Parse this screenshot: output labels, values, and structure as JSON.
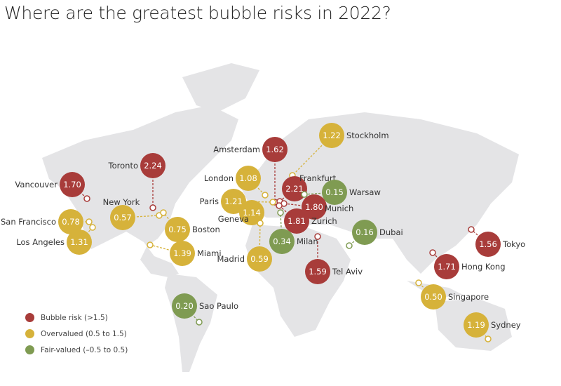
{
  "title": "Where are the greatest bubble risks in 2022?",
  "colors": {
    "bubble_risk": "#a83c3a",
    "overvalued": "#d6b23a",
    "fair_valued": "#7f9b52",
    "land": "#e4e4e6"
  },
  "legend": [
    {
      "category": "bubble_risk",
      "label": "Bubble risk (>1.5)"
    },
    {
      "category": "overvalued",
      "label": "Overvalued (0.5 to 1.5)"
    },
    {
      "category": "fair_valued",
      "label": "Fair-valued (–0.5 to 0.5)"
    }
  ],
  "cities": [
    {
      "name": "Vancouver",
      "value": "1.70",
      "category": "bubble_risk"
    },
    {
      "name": "Toronto",
      "value": "2.24",
      "category": "bubble_risk"
    },
    {
      "name": "New York",
      "value": "0.57",
      "category": "overvalued"
    },
    {
      "name": "Boston",
      "value": "0.75",
      "category": "overvalued"
    },
    {
      "name": "San Francisco",
      "value": "0.78",
      "category": "overvalued"
    },
    {
      "name": "Los Angeles",
      "value": "1.31",
      "category": "overvalued"
    },
    {
      "name": "Miami",
      "value": "1.39",
      "category": "overvalued"
    },
    {
      "name": "Sao Paulo",
      "value": "0.20",
      "category": "fair_valued"
    },
    {
      "name": "Amsterdam",
      "value": "1.62",
      "category": "bubble_risk"
    },
    {
      "name": "London",
      "value": "1.08",
      "category": "overvalued"
    },
    {
      "name": "Paris",
      "value": "1.21",
      "category": "overvalued"
    },
    {
      "name": "Geneva",
      "value": "1.14",
      "category": "overvalued"
    },
    {
      "name": "Madrid",
      "value": "0.59",
      "category": "overvalued"
    },
    {
      "name": "Stockholm",
      "value": "1.22",
      "category": "overvalued"
    },
    {
      "name": "Frankfurt",
      "value": "2.21",
      "category": "bubble_risk"
    },
    {
      "name": "Warsaw",
      "value": "0.15",
      "category": "fair_valued"
    },
    {
      "name": "Munich",
      "value": "1.80",
      "category": "bubble_risk"
    },
    {
      "name": "Zurich",
      "value": "1.81",
      "category": "bubble_risk"
    },
    {
      "name": "Milan",
      "value": "0.34",
      "category": "fair_valued"
    },
    {
      "name": "Tel Aviv",
      "value": "1.59",
      "category": "bubble_risk"
    },
    {
      "name": "Dubai",
      "value": "0.16",
      "category": "fair_valued"
    },
    {
      "name": "Tokyo",
      "value": "1.56",
      "category": "bubble_risk"
    },
    {
      "name": "Hong Kong",
      "value": "1.71",
      "category": "bubble_risk"
    },
    {
      "name": "Singapore",
      "value": "0.50",
      "category": "overvalued"
    },
    {
      "name": "Sydney",
      "value": "1.19",
      "category": "overvalued"
    }
  ]
}
